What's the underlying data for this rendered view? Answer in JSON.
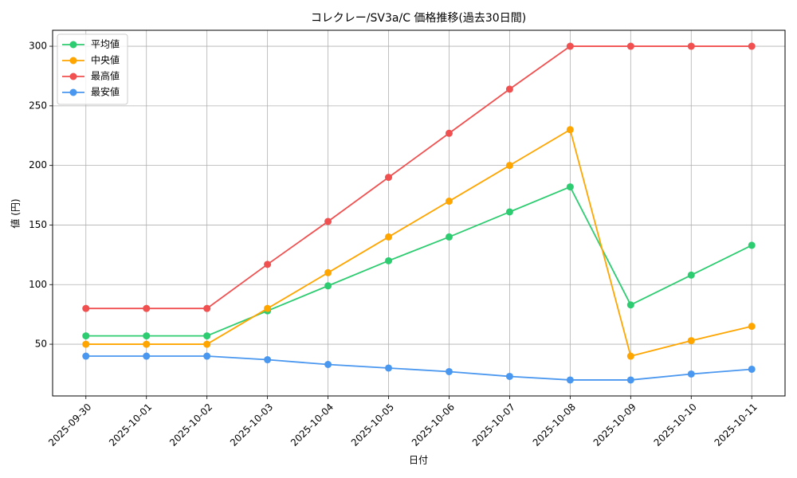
{
  "chart_data": {
    "type": "line",
    "title": "コレクレー/SV3a/C 価格推移(過去30日間)",
    "x_label": "日付",
    "y_label": "値 (円)",
    "x": [
      "2025-09-30",
      "2025-10-01",
      "2025-10-02",
      "2025-10-03",
      "2025-10-04",
      "2025-10-05",
      "2025-10-06",
      "2025-10-07",
      "2025-10-08",
      "2025-10-09",
      "2025-10-10",
      "2025-10-11"
    ],
    "series": [
      {
        "name": "平均値",
        "color": "#2ecc71",
        "values": [
          57,
          57,
          57,
          78,
          99,
          120,
          140,
          161,
          182,
          83,
          108,
          133
        ]
      },
      {
        "name": "中央値",
        "color": "#ffa500",
        "values": [
          50,
          50,
          50,
          80,
          110,
          140,
          170,
          200,
          230,
          40,
          53,
          65
        ]
      },
      {
        "name": "最高値",
        "color": "#f05050",
        "values": [
          80,
          80,
          80,
          117,
          153,
          190,
          227,
          264,
          300,
          300,
          300,
          300
        ]
      },
      {
        "name": "最安値",
        "color": "#4a97f0",
        "values": [
          40,
          40,
          40,
          37,
          33,
          30,
          27,
          23,
          20,
          20,
          25,
          29
        ]
      }
    ],
    "ylim": [
      6.6,
      313.4
    ],
    "yticks": [
      50,
      100,
      150,
      200,
      250,
      300
    ],
    "grid": true,
    "legend": "upper-left"
  }
}
